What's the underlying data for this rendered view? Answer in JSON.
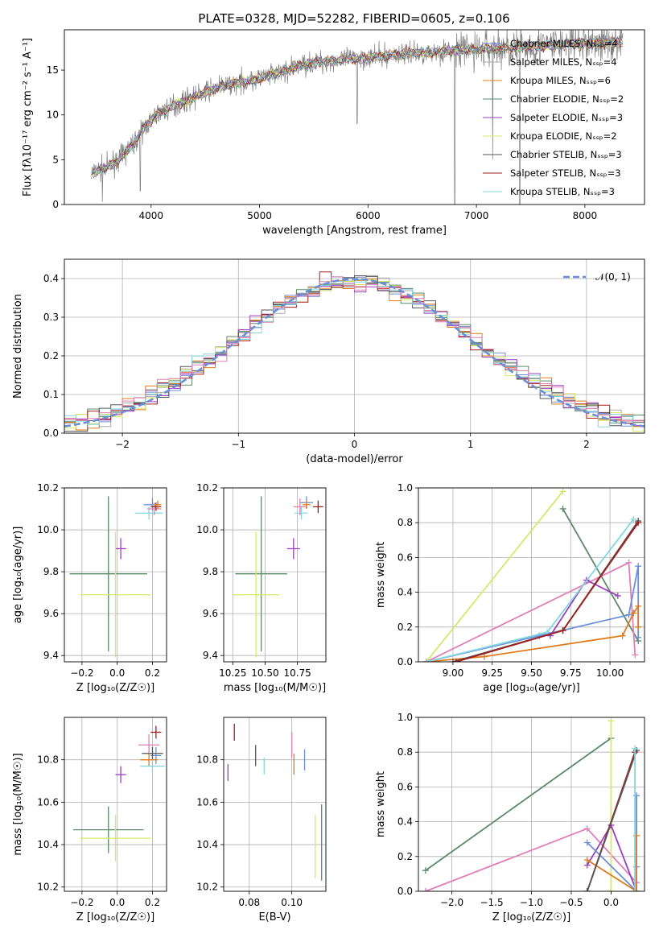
{
  "figure": {
    "title": "PLATE=0328, MJD=52282, FIBERID=0605, z=0.106"
  },
  "colors": {
    "Chabrier MILES": "#6a8fd8",
    "Salpeter MILES": "#aaaaaa",
    "Kroupa MILES": "#e07b1d",
    "Chabrier ELODIE": "#5b8a6a",
    "Salpeter ELODIE": "#9b3fbf",
    "Kroupa ELODIE": "#d6e86a",
    "Chabrier STELIB": "#555555",
    "Salpeter STELIB": "#a31d1d",
    "Kroupa STELIB": "#82d6e0",
    "Pink": "#e07fb8",
    "Normal": "#6a8fd8",
    "Data": "#808080"
  },
  "chart_data": [
    {
      "id": "spectrum",
      "type": "line",
      "title": "PLATE=0328, MJD=52282, FIBERID=0605, z=0.106",
      "xlabel": "wavelength [Angstrom, rest frame]",
      "ylabel": "Flux [fλ10⁻¹⁷ erg cm⁻² s⁻¹ A⁻¹]",
      "xlim": [
        3200,
        8550
      ],
      "ylim": [
        0,
        19.5
      ],
      "xticks": [
        4000,
        5000,
        6000,
        7000,
        8000
      ],
      "yticks": [
        0,
        5,
        10,
        15
      ],
      "grid": false,
      "legend_position": "top-right",
      "continuum_anchor_x": [
        3450,
        3600,
        3700,
        3850,
        3950,
        4050,
        4200,
        4400,
        4600,
        4800,
        5000,
        5200,
        5400,
        5600,
        5800,
        6000,
        6200,
        6400,
        6600,
        6800,
        7000,
        7200,
        7400,
        7600,
        7800,
        8000,
        8200,
        8350
      ],
      "continuum_anchor_y": [
        3.5,
        4.2,
        5.0,
        7.0,
        8.8,
        10.0,
        11.0,
        12.0,
        13.0,
        13.6,
        14.0,
        14.8,
        15.6,
        16.0,
        16.2,
        16.4,
        16.6,
        16.9,
        17.0,
        17.2,
        17.3,
        17.4,
        17.6,
        17.7,
        17.8,
        18.0,
        18.1,
        18.2
      ],
      "spikes_down": [
        [
          3550,
          0.3
        ],
        [
          3900,
          1.5
        ],
        [
          5900,
          9.0
        ],
        [
          6800,
          0.0
        ],
        [
          7150,
          5.0
        ],
        [
          7400,
          0.0
        ]
      ],
      "legend": [
        {
          "name": "Chabrier MILES, N_SSP=4"
        },
        {
          "name": "Salpeter MILES, N_SSP=4"
        },
        {
          "name": "Kroupa MILES, N_SSP=6"
        },
        {
          "name": "Chabrier ELODIE, N_SSP=2"
        },
        {
          "name": "Salpeter ELODIE, N_SSP=3"
        },
        {
          "name": "Kroupa ELODIE, N_SSP=2"
        },
        {
          "name": "Chabrier STELIB, N_SSP=3"
        },
        {
          "name": "Salpeter STELIB, N_SSP=3"
        },
        {
          "name": "Kroupa STELIB, N_SSP=3"
        }
      ]
    },
    {
      "id": "residuals",
      "type": "line",
      "xlabel": "(data-model)/error",
      "ylabel": "Normed distribution",
      "xlim": [
        -2.5,
        2.5
      ],
      "ylim": [
        0,
        0.45
      ],
      "xticks": [
        -2,
        -1,
        0,
        1,
        2
      ],
      "yticks": [
        0.0,
        0.1,
        0.2,
        0.3,
        0.4
      ],
      "grid": true,
      "legend_position": "top-right",
      "normal_curve_label": "𝒩(0, 1)",
      "bin_start": -2.5,
      "bin_width": 0.1,
      "n_bins": 50
    },
    {
      "id": "age_vs_Z",
      "type": "scatter",
      "xlabel": "Z [log₁₀(Z/Z☉)]",
      "ylabel": "age  [log₁₀(age/yr)]",
      "xlim": [
        -0.3,
        0.28
      ],
      "ylim": [
        9.37,
        10.2
      ],
      "xticks": [
        -0.2,
        0.0,
        0.2
      ],
      "yticks": [
        9.4,
        9.6,
        9.8,
        10.0,
        10.2
      ],
      "grid": true,
      "points": [
        {
          "c": "Chabrier MILES",
          "x": 0.2,
          "xe": 0.05,
          "y": 10.12,
          "ye": 0.03
        },
        {
          "c": "Kroupa STELIB",
          "x": 0.18,
          "xe": 0.08,
          "y": 10.08,
          "ye": 0.03
        },
        {
          "c": "Pink",
          "x": 0.21,
          "xe": 0.04,
          "y": 10.1,
          "ye": 0.03
        },
        {
          "c": "Salpeter STELIB",
          "x": 0.22,
          "xe": 0.03,
          "y": 10.11,
          "ye": 0.02
        },
        {
          "c": "Kroupa MILES",
          "x": 0.23,
          "xe": 0.02,
          "y": 10.12,
          "ye": 0.02
        },
        {
          "c": "Salpeter ELODIE",
          "x": 0.02,
          "xe": 0.03,
          "y": 9.91,
          "ye": 0.05
        },
        {
          "c": "Chabrier ELODIE",
          "x": -0.05,
          "xe": 0.22,
          "y": 9.79,
          "ye": 0.37
        },
        {
          "c": "Kroupa ELODIE",
          "x": -0.01,
          "xe": 0.2,
          "y": 9.69,
          "ye": 0.3
        }
      ]
    },
    {
      "id": "age_vs_mass",
      "type": "scatter",
      "xlabel": "mass [log₁₀(M/M☉)]",
      "ylabel": "",
      "xlim": [
        10.18,
        10.97
      ],
      "ylim": [
        9.37,
        10.2
      ],
      "xticks": [
        10.25,
        10.5,
        10.75
      ],
      "yticks": [
        9.4,
        9.6,
        9.8,
        10.0,
        10.2
      ],
      "grid": true,
      "points": [
        {
          "c": "Chabrier MILES",
          "x": 10.82,
          "xe": 0.05,
          "y": 10.13,
          "ye": 0.03
        },
        {
          "c": "Kroupa STELIB",
          "x": 10.78,
          "xe": 0.05,
          "y": 10.08,
          "ye": 0.03
        },
        {
          "c": "Pink",
          "x": 10.77,
          "xe": 0.05,
          "y": 10.11,
          "ye": 0.04
        },
        {
          "c": "Salpeter STELIB",
          "x": 10.91,
          "xe": 0.04,
          "y": 10.11,
          "ye": 0.03
        },
        {
          "c": "Kroupa MILES",
          "x": 10.82,
          "xe": 0.03,
          "y": 10.12,
          "ye": 0.02
        },
        {
          "c": "Salpeter ELODIE",
          "x": 10.72,
          "xe": 0.05,
          "y": 9.91,
          "ye": 0.05
        },
        {
          "c": "Chabrier ELODIE",
          "x": 10.47,
          "xe": 0.2,
          "y": 9.79,
          "ye": 0.37
        },
        {
          "c": "Kroupa ELODIE",
          "x": 10.43,
          "xe": 0.18,
          "y": 9.69,
          "ye": 0.3
        }
      ]
    },
    {
      "id": "weight_vs_age",
      "type": "line",
      "xlabel": "age  [log₁₀(age/yr)]",
      "ylabel": "mass weight",
      "xlim": [
        8.78,
        10.22
      ],
      "ylim": [
        0,
        1
      ],
      "xticks": [
        9.0,
        9.25,
        9.5,
        9.75,
        10.0
      ],
      "yticks": [
        0.0,
        0.2,
        0.4,
        0.6,
        0.8,
        1.0
      ],
      "grid": true,
      "series": [
        {
          "c": "Kroupa ELODIE",
          "x": [
            8.83,
            9.7
          ],
          "y": [
            0.0,
            0.98
          ]
        },
        {
          "c": "Chabrier ELODIE",
          "x": [
            9.7,
            10.18
          ],
          "y": [
            0.88,
            0.12
          ]
        },
        {
          "c": "Pink",
          "x": [
            8.83,
            10.12,
            10.16
          ],
          "y": [
            0.0,
            0.57,
            0.04
          ]
        },
        {
          "c": "Chabrier MILES",
          "x": [
            8.83,
            9.55,
            10.12,
            10.18,
            10.18
          ],
          "y": [
            0.0,
            0.15,
            0.27,
            0.55,
            0.14
          ]
        },
        {
          "c": "Kroupa MILES",
          "x": [
            8.83,
            9.2,
            10.08,
            10.15,
            10.18,
            10.18
          ],
          "y": [
            0.0,
            0.03,
            0.15,
            0.28,
            0.32,
            0.2
          ]
        },
        {
          "c": "Salpeter ELODIE",
          "x": [
            9.62,
            9.85,
            10.05
          ],
          "y": [
            0.15,
            0.47,
            0.38
          ]
        },
        {
          "c": "Chabrier STELIB",
          "x": [
            9.0,
            9.7,
            10.18
          ],
          "y": [
            0.0,
            0.18,
            0.81
          ]
        },
        {
          "c": "Kroupa STELIB",
          "x": [
            8.83,
            9.6,
            10.15
          ],
          "y": [
            0.0,
            0.17,
            0.82
          ]
        },
        {
          "c": "Salpeter STELIB",
          "x": [
            9.02,
            9.7,
            10.18
          ],
          "y": [
            0.0,
            0.18,
            0.8
          ]
        }
      ]
    },
    {
      "id": "mass_vs_Z",
      "type": "scatter",
      "xlabel": "Z [log₁₀(Z/Z☉)]",
      "ylabel": "mass [log₁₀(M/M☉)]",
      "xlim": [
        -0.3,
        0.28
      ],
      "ylim": [
        10.18,
        11.0
      ],
      "xticks": [
        -0.2,
        0.0,
        0.2
      ],
      "yticks": [
        10.2,
        10.4,
        10.6,
        10.8
      ],
      "grid": true,
      "points": [
        {
          "c": "Salpeter STELIB",
          "x": 0.22,
          "xe": 0.03,
          "y": 10.93,
          "ye": 0.03
        },
        {
          "c": "Pink",
          "x": 0.18,
          "xe": 0.06,
          "y": 10.87,
          "ye": 0.05
        },
        {
          "c": "Chabrier MILES",
          "x": 0.22,
          "xe": 0.03,
          "y": 10.82,
          "ye": 0.04
        },
        {
          "c": "Chabrier STELIB",
          "x": 0.2,
          "xe": 0.06,
          "y": 10.83,
          "ye": 0.03
        },
        {
          "c": "Kroupa MILES",
          "x": 0.18,
          "xe": 0.05,
          "y": 10.8,
          "ye": 0.03
        },
        {
          "c": "Kroupa STELIB",
          "x": 0.2,
          "xe": 0.07,
          "y": 10.77,
          "ye": 0.03
        },
        {
          "c": "Salpeter ELODIE",
          "x": 0.02,
          "xe": 0.03,
          "y": 10.73,
          "ye": 0.04
        },
        {
          "c": "Chabrier ELODIE",
          "x": -0.05,
          "xe": 0.2,
          "y": 10.47,
          "ye": 0.11
        },
        {
          "c": "Kroupa ELODIE",
          "x": -0.01,
          "xe": 0.2,
          "y": 10.43,
          "ye": 0.11
        }
      ]
    },
    {
      "id": "mass_vs_ebv",
      "type": "scatter",
      "xlabel": "E(B-V)",
      "ylabel": "",
      "xlim": [
        0.068,
        0.116
      ],
      "ylim": [
        10.18,
        11.0
      ],
      "xticks": [
        0.08,
        0.1
      ],
      "yticks": [
        10.2,
        10.4,
        10.6,
        10.8
      ],
      "grid": true,
      "points": [
        {
          "c": "Salpeter STELIB",
          "x": 0.073,
          "y": 10.93,
          "ye": 0.04
        },
        {
          "c": "Salpeter ELODIE",
          "x": 0.07,
          "y": 10.74,
          "ye": 0.04
        },
        {
          "c": "Chabrier STELIB",
          "x": 0.083,
          "y": 10.82,
          "ye": 0.05
        },
        {
          "c": "Kroupa STELIB",
          "x": 0.087,
          "y": 10.77,
          "ye": 0.04
        },
        {
          "c": "Pink",
          "x": 0.1,
          "y": 10.87,
          "ye": 0.06
        },
        {
          "c": "Kroupa MILES",
          "x": 0.101,
          "y": 10.78,
          "ye": 0.05
        },
        {
          "c": "Chabrier MILES",
          "x": 0.106,
          "y": 10.8,
          "ye": 0.05
        },
        {
          "c": "Kroupa ELODIE",
          "x": 0.111,
          "y": 10.39,
          "ye": 0.15
        },
        {
          "c": "Chabrier ELODIE",
          "x": 0.114,
          "y": 10.41,
          "ye": 0.18
        }
      ]
    },
    {
      "id": "weight_vs_Z",
      "type": "line",
      "xlabel": "Z [log₁₀(Z/Z☉)]",
      "ylabel": "mass weight",
      "xlim": [
        -2.42,
        0.42
      ],
      "ylim": [
        0,
        1
      ],
      "xticks": [
        -2.0,
        -1.5,
        -1.0,
        -0.5,
        0.0
      ],
      "yticks": [
        0.0,
        0.2,
        0.4,
        0.6,
        0.8,
        1.0
      ],
      "grid": true,
      "series": [
        {
          "c": "Chabrier ELODIE",
          "x": [
            -2.33,
            0.0
          ],
          "y": [
            0.12,
            0.88
          ]
        },
        {
          "c": "Pink",
          "x": [
            -2.33,
            -0.3,
            0.32
          ],
          "y": [
            0.0,
            0.36,
            0.05
          ]
        },
        {
          "c": "Kroupa ELODIE",
          "x": [
            0.0,
            0.0
          ],
          "y": [
            0.0,
            0.98
          ]
        },
        {
          "c": "Salpeter ELODIE",
          "x": [
            -0.3,
            0.0,
            0.32
          ],
          "y": [
            0.15,
            0.38,
            0.0
          ]
        },
        {
          "c": "Chabrier MILES",
          "x": [
            -0.3,
            0.32,
            0.32,
            0.32
          ],
          "y": [
            0.28,
            0.0,
            0.55,
            0.14
          ]
        },
        {
          "c": "Kroupa MILES",
          "x": [
            -0.3,
            0.32,
            0.32
          ],
          "y": [
            0.18,
            0.0,
            0.32
          ]
        },
        {
          "c": "Salpeter STELIB",
          "x": [
            -0.3,
            0.3
          ],
          "y": [
            0.0,
            0.8
          ]
        },
        {
          "c": "Chabrier STELIB",
          "x": [
            -0.3,
            0.32
          ],
          "y": [
            0.0,
            0.81
          ]
        },
        {
          "c": "Kroupa STELIB",
          "x": [
            0.3,
            0.3
          ],
          "y": [
            0.0,
            0.82
          ]
        }
      ]
    }
  ]
}
